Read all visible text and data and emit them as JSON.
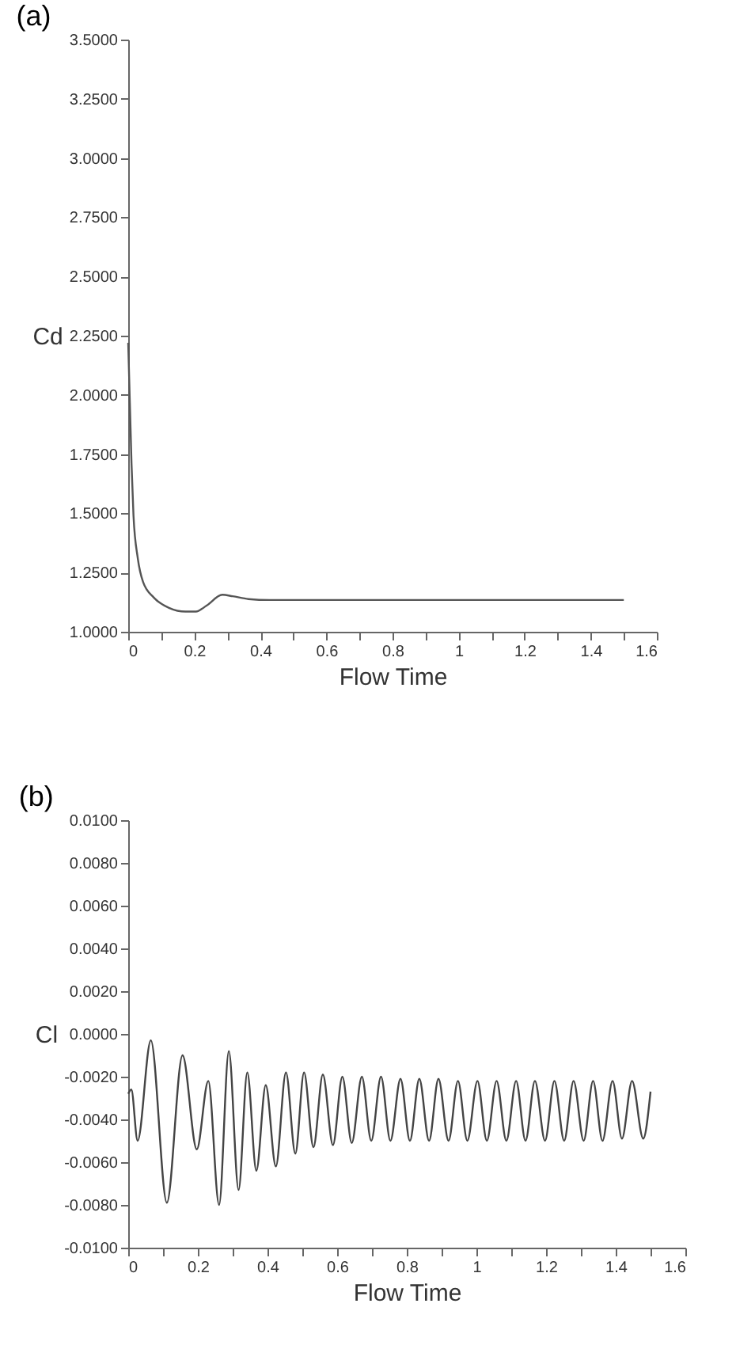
{
  "chart_data": [
    {
      "type": "line",
      "title": "(a)",
      "xlabel": "Flow Time",
      "ylabel": "Cd",
      "marker": "none",
      "line_style": "solid",
      "xlim": [
        0,
        1.6
      ],
      "ylim": [
        1.0,
        3.5
      ],
      "xticks": [
        0,
        {
          "value": 0.1,
          "label": null
        },
        0.2,
        {
          "value": 0.3,
          "label": null
        },
        0.4,
        {
          "value": 0.5,
          "label": null
        },
        0.6,
        {
          "value": 0.7,
          "label": null
        },
        0.8,
        {
          "value": 0.9,
          "label": null
        },
        1,
        {
          "value": 1.1,
          "label": null
        },
        1.2,
        {
          "value": 1.3,
          "label": null
        },
        1.4,
        {
          "value": 1.5,
          "label": null
        },
        1.6
      ],
      "yticks": [
        {
          "value": 1.0,
          "label": "1.0000"
        },
        {
          "value": 1.25,
          "label": "1.2500"
        },
        {
          "value": 1.5,
          "label": "1.5000"
        },
        {
          "value": 1.75,
          "label": "1.7500"
        },
        {
          "value": 2.0,
          "label": "2.0000"
        },
        {
          "value": 2.25,
          "label": "2.2500"
        },
        {
          "value": 2.5,
          "label": "2.5000"
        },
        {
          "value": 2.75,
          "label": "2.7500"
        },
        {
          "value": 3.0,
          "label": "3.0000"
        },
        {
          "value": 3.25,
          "label": "3.2500"
        },
        {
          "value": 3.5,
          "label": "3.5000"
        }
      ],
      "series": [
        {
          "color": "#555555",
          "x": [
            0,
            0.01,
            0.016,
            0.029,
            0.045,
            0.077,
            0.125,
            0.173,
            0.205,
            0.237,
            0.285,
            0.316,
            0.364,
            0.428,
            0.7,
            1.0,
            1.5
          ],
          "values": [
            2.22,
            1.71,
            1.49,
            1.31,
            1.21,
            1.145,
            1.1,
            1.085,
            1.085,
            1.11,
            1.156,
            1.15,
            1.138,
            1.134,
            1.134,
            1.134,
            1.134
          ]
        }
      ]
    },
    {
      "type": "line",
      "title": "(b)",
      "xlabel": "Flow Time",
      "ylabel": "Cl",
      "marker": "none",
      "line_style": "solid",
      "xlim": [
        0,
        1.6
      ],
      "ylim": [
        -0.01,
        0.01
      ],
      "xticks": [
        0,
        {
          "value": 0.1,
          "label": null
        },
        0.2,
        {
          "value": 0.3,
          "label": null
        },
        0.4,
        {
          "value": 0.5,
          "label": null
        },
        0.6,
        {
          "value": 0.7,
          "label": null
        },
        0.8,
        {
          "value": 0.9,
          "label": null
        },
        1,
        {
          "value": 1.1,
          "label": null
        },
        1.2,
        {
          "value": 1.3,
          "label": null
        },
        1.4,
        {
          "value": 1.5,
          "label": null
        },
        1.6
      ],
      "yticks": [
        {
          "value": -0.01,
          "label": "-0.0100"
        },
        {
          "value": -0.008,
          "label": "-0.0080"
        },
        {
          "value": -0.006,
          "label": "-0.0060"
        },
        {
          "value": -0.004,
          "label": "-0.0040"
        },
        {
          "value": -0.002,
          "label": "-0.0020"
        },
        {
          "value": 0,
          "label": "0.0000"
        },
        {
          "value": 0.002,
          "label": "0.0020"
        },
        {
          "value": 0.004,
          "label": "0.0040"
        },
        {
          "value": 0.006,
          "label": "0.0060"
        },
        {
          "value": 0.008,
          "label": "0.0080"
        },
        {
          "value": 0.01,
          "label": "0.0100"
        }
      ],
      "series": [
        {
          "color": "#444444",
          "x": [
            0,
            0.009,
            0.027,
            0.065,
            0.111,
            0.156,
            0.197,
            0.23,
            0.261,
            0.289,
            0.317,
            0.342,
            0.368,
            0.395,
            0.424,
            0.453,
            0.48,
            0.505,
            0.532,
            0.559,
            0.588,
            0.615,
            0.642,
            0.671,
            0.698,
            0.726,
            0.753,
            0.782,
            0.809,
            0.836,
            0.864,
            0.891,
            0.92,
            0.947,
            0.974,
            1.003,
            1.03,
            1.058,
            1.086,
            1.114,
            1.141,
            1.168,
            1.197,
            1.224,
            1.252,
            1.279,
            1.308,
            1.335,
            1.362,
            1.391,
            1.418,
            1.447,
            1.479,
            1.5
          ],
          "values": [
            -0.0028,
            -0.0026,
            -0.005,
            -0.0003,
            -0.0079,
            -0.001,
            -0.0054,
            -0.0022,
            -0.008,
            -0.0008,
            -0.0073,
            -0.0018,
            -0.0064,
            -0.0024,
            -0.0062,
            -0.0018,
            -0.0056,
            -0.0018,
            -0.0053,
            -0.0019,
            -0.0052,
            -0.002,
            -0.0051,
            -0.002,
            -0.005,
            -0.002,
            -0.005,
            -0.0021,
            -0.005,
            -0.0021,
            -0.005,
            -0.0021,
            -0.005,
            -0.0022,
            -0.005,
            -0.0022,
            -0.005,
            -0.0022,
            -0.005,
            -0.0022,
            -0.005,
            -0.0022,
            -0.005,
            -0.0022,
            -0.005,
            -0.0022,
            -0.005,
            -0.0022,
            -0.005,
            -0.0022,
            -0.0049,
            -0.0022,
            -0.0049,
            -0.0027
          ]
        }
      ]
    }
  ]
}
